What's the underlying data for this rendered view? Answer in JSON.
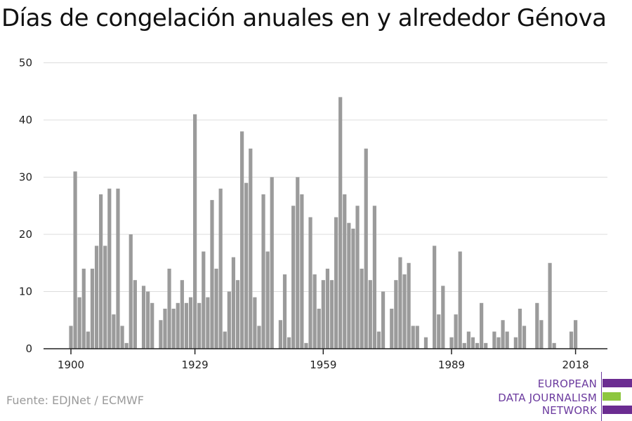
{
  "title": "Días de congelación anuales en y alrededor Génova",
  "source": "Fuente: EDJNet / ECMWF",
  "logo": {
    "lines": [
      "EUROPEAN",
      "DATA JOURNALISM",
      "NETWORK"
    ],
    "colors": {
      "purple": "#6b2c91",
      "green": "#8dc63f"
    }
  },
  "colors": {
    "bar": "#9b9b9b",
    "grid": "#dddddd",
    "axis": "#222222"
  },
  "chart_data": {
    "type": "bar",
    "title": "Días de congelación anuales en y alrededor Génova",
    "xlabel": "",
    "ylabel": "",
    "ylim": [
      0,
      50
    ],
    "yticks": [
      0,
      10,
      20,
      30,
      40,
      50
    ],
    "xticks": [
      1900,
      1929,
      1959,
      1989,
      2018
    ],
    "grid": true,
    "x": [
      1900,
      1901,
      1902,
      1903,
      1904,
      1905,
      1906,
      1907,
      1908,
      1909,
      1910,
      1911,
      1912,
      1913,
      1914,
      1915,
      1916,
      1917,
      1918,
      1919,
      1920,
      1921,
      1922,
      1923,
      1924,
      1925,
      1926,
      1927,
      1928,
      1929,
      1930,
      1931,
      1932,
      1933,
      1934,
      1935,
      1936,
      1937,
      1938,
      1939,
      1940,
      1941,
      1942,
      1943,
      1944,
      1945,
      1946,
      1947,
      1948,
      1949,
      1950,
      1951,
      1952,
      1953,
      1954,
      1955,
      1956,
      1957,
      1958,
      1959,
      1960,
      1961,
      1962,
      1963,
      1964,
      1965,
      1966,
      1967,
      1968,
      1969,
      1970,
      1971,
      1972,
      1973,
      1974,
      1975,
      1976,
      1977,
      1978,
      1979,
      1980,
      1981,
      1982,
      1983,
      1984,
      1985,
      1986,
      1987,
      1988,
      1989,
      1990,
      1991,
      1992,
      1993,
      1994,
      1995,
      1996,
      1997,
      1998,
      1999,
      2000,
      2001,
      2002,
      2003,
      2004,
      2005,
      2006,
      2007,
      2008,
      2009,
      2010,
      2011,
      2012,
      2013,
      2014,
      2015,
      2016,
      2017,
      2018,
      2019,
      2020
    ],
    "values": [
      4,
      31,
      9,
      14,
      3,
      14,
      18,
      27,
      18,
      28,
      6,
      28,
      4,
      1,
      20,
      12,
      0,
      11,
      10,
      8,
      0,
      5,
      7,
      14,
      7,
      8,
      12,
      8,
      9,
      41,
      8,
      17,
      9,
      26,
      14,
      28,
      3,
      10,
      16,
      12,
      38,
      29,
      35,
      9,
      4,
      27,
      17,
      30,
      0,
      5,
      13,
      2,
      25,
      30,
      27,
      1,
      23,
      13,
      7,
      12,
      14,
      12,
      23,
      44,
      27,
      22,
      21,
      25,
      14,
      35,
      12,
      25,
      3,
      10,
      0,
      7,
      12,
      16,
      13,
      15,
      4,
      4,
      0,
      2,
      0,
      18,
      6,
      11,
      0,
      2,
      6,
      17,
      1,
      3,
      2,
      1,
      8,
      1,
      0,
      3,
      2,
      5,
      3,
      0,
      2,
      7,
      4,
      0,
      0,
      8,
      5,
      0,
      15,
      1,
      0,
      0,
      0,
      3,
      5,
      0,
      0
    ]
  }
}
